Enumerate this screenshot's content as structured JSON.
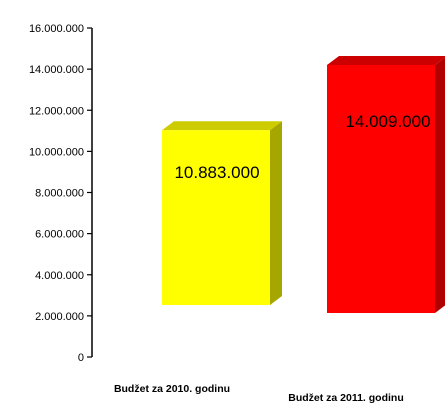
{
  "chart_data": {
    "type": "bar",
    "title": "",
    "xlabel": "",
    "ylabel": "",
    "categories": [
      "Budžet za 2010. godinu",
      "Budžet za 2011. godinu"
    ],
    "values": [
      10883000,
      14009000
    ],
    "data_labels": [
      "10.883.000",
      "14.009.000"
    ],
    "ylim": [
      0,
      16000000
    ],
    "y_ticks": [
      0,
      2000000,
      4000000,
      6000000,
      8000000,
      10000000,
      12000000,
      14000000,
      16000000
    ],
    "y_tick_labels": [
      "0",
      "2.000.000",
      "4.000.000",
      "6.000.000",
      "8.000.000",
      "10.000.000",
      "12.000.000",
      "14.000.000",
      "16.000.000"
    ],
    "grid": false,
    "legend": "none",
    "style": "3d",
    "colors": {
      "bar1_front": "#ffff00",
      "bar1_top": "#cccc00",
      "bar1_side": "#a6a600",
      "bar2_front": "#ff0000",
      "bar2_top": "#cc0000",
      "bar2_side": "#b00000"
    }
  }
}
